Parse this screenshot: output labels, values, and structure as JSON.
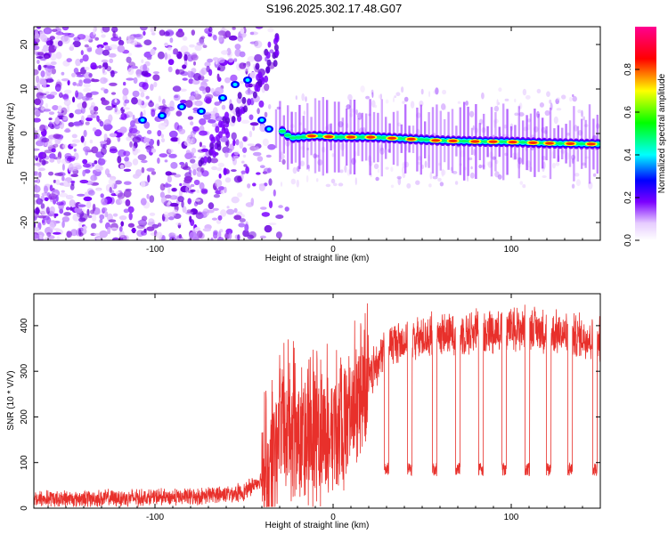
{
  "title": "S196.2025.302.17.48.G07",
  "chart_data": [
    {
      "type": "heatmap",
      "name": "spectrogram",
      "xlabel": "Height of straight line (km)",
      "ylabel": "Frequency (Hz)",
      "xlim": [
        -168,
        150
      ],
      "ylim": [
        -24,
        24
      ],
      "xticks": [
        -100,
        0,
        100
      ],
      "yticks": [
        -20,
        -10,
        0,
        10,
        20
      ],
      "colorbar": {
        "label": "Normalized spectral amplitude",
        "range": [
          0,
          1
        ],
        "ticks": [
          0.0,
          0.2,
          0.4,
          0.6,
          0.8
        ],
        "colors": [
          "#ffffff",
          "#7b00ff",
          "#0000ff",
          "#00ffff",
          "#00ff00",
          "#ffff00",
          "#ff0000",
          "#ff0080"
        ]
      },
      "ridge": {
        "description": "dominant frequency ridge",
        "points": [
          [
            -110,
            3
          ],
          [
            -90,
            4
          ],
          [
            -75,
            5
          ],
          [
            -60,
            8
          ],
          [
            -45,
            12
          ],
          [
            -35,
            2
          ],
          [
            -25,
            -1
          ],
          [
            -10,
            -0.5
          ],
          [
            0,
            -0.8
          ],
          [
            20,
            -0.8
          ],
          [
            40,
            -1.2
          ],
          [
            60,
            -1.6
          ],
          [
            80,
            -1.8
          ],
          [
            100,
            -1.9
          ],
          [
            120,
            -2.2
          ],
          [
            150,
            -2.4
          ]
        ]
      }
    },
    {
      "type": "line",
      "name": "snr",
      "xlabel": "Height of straight line (km)",
      "ylabel": "SNR (10 * V/V)",
      "xlim": [
        -168,
        150
      ],
      "ylim": [
        0,
        470
      ],
      "xticks": [
        -100,
        0,
        100
      ],
      "yticks": [
        0,
        100,
        200,
        300,
        400
      ],
      "color": "#e8302b",
      "envelope": [
        [
          -168,
          20
        ],
        [
          -120,
          22
        ],
        [
          -80,
          25
        ],
        [
          -50,
          35
        ],
        [
          -35,
          80
        ],
        [
          -30,
          180
        ],
        [
          -10,
          150
        ],
        [
          10,
          200
        ],
        [
          20,
          280
        ],
        [
          30,
          360
        ],
        [
          60,
          380
        ],
        [
          90,
          390
        ],
        [
          110,
          395
        ],
        [
          130,
          380
        ],
        [
          150,
          370
        ]
      ],
      "dropouts": [
        30,
        43,
        57,
        70,
        83,
        96,
        109,
        121,
        133,
        147
      ],
      "dropout_level": 85
    }
  ]
}
